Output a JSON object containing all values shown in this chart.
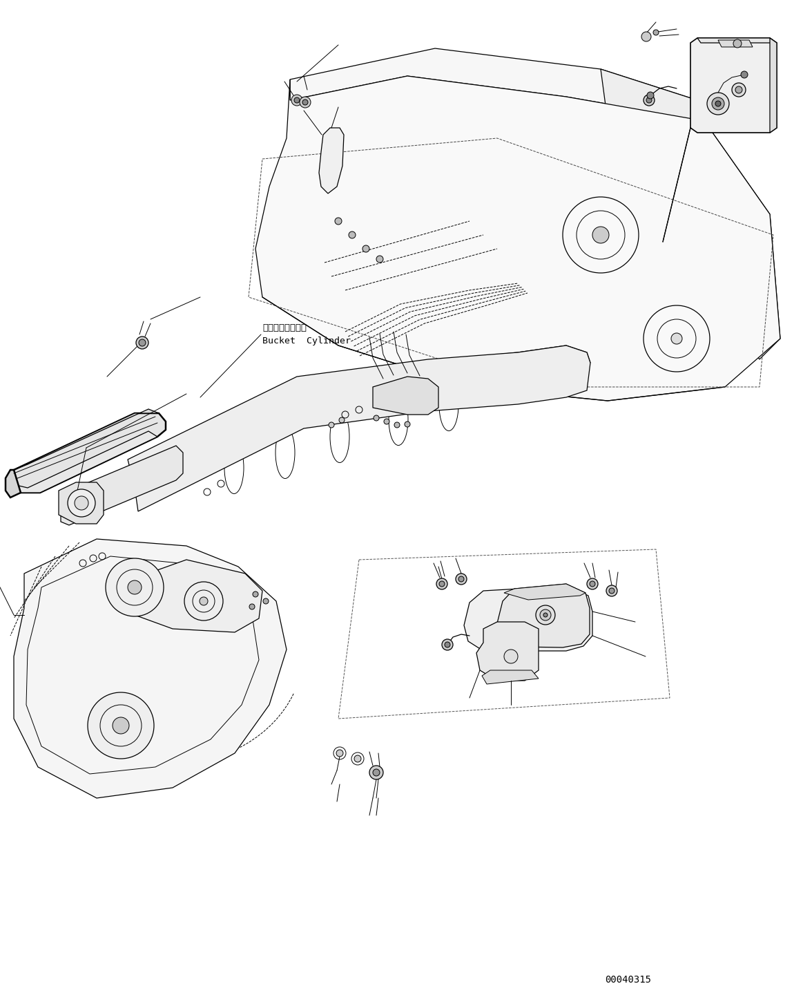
{
  "fig_width": 11.63,
  "fig_height": 14.53,
  "dpi": 100,
  "bg_color": "#ffffff",
  "line_color": "#000000",
  "label_text_1": "バケットシリンダ",
  "label_text_2": "Bucket  Cylinder",
  "part_number": "00040315",
  "annotation_font_size": 9.5,
  "part_number_font_size": 10
}
